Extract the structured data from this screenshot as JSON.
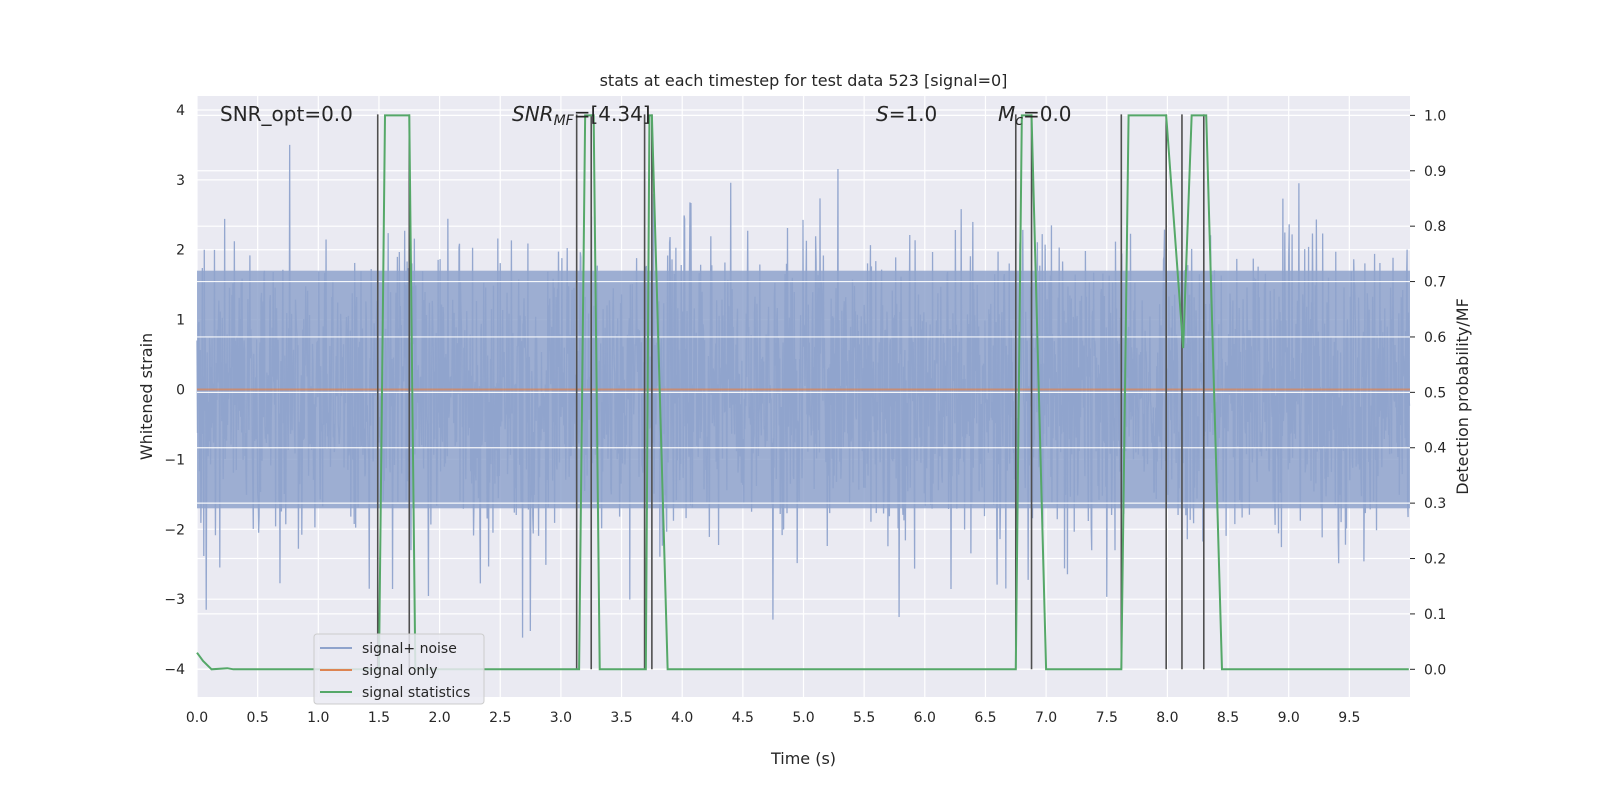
{
  "chart_data": {
    "type": "line",
    "title": "stats at each timestep for test data 523 [signal=0]",
    "xlabel": "Time (s)",
    "ylabel_left": "Whitened strain",
    "ylabel_right": "Detection probability/MF",
    "xlim": [
      0.0,
      10.0
    ],
    "ylim_left": [
      -4.4,
      4.2
    ],
    "ylim_right": [
      -0.05,
      1.035
    ],
    "x_ticks": [
      "0.0",
      "0.5",
      "1.0",
      "1.5",
      "2.0",
      "2.5",
      "3.0",
      "3.5",
      "4.0",
      "4.5",
      "5.0",
      "5.5",
      "6.0",
      "6.5",
      "7.0",
      "7.5",
      "8.0",
      "8.5",
      "9.0",
      "9.5"
    ],
    "y_ticks_left": [
      "−4",
      "−3",
      "−2",
      "−1",
      "0",
      "1",
      "2",
      "3",
      "4"
    ],
    "y_ticks_right": [
      "0.0",
      "0.1",
      "0.2",
      "0.3",
      "0.4",
      "0.5",
      "0.6",
      "0.7",
      "0.8",
      "0.9",
      "1.0"
    ],
    "grid": true,
    "legend_position": "lower-left",
    "annotations": {
      "snr_opt": "SNR_opt=0.0",
      "snr_mf_main": "SNR",
      "snr_mf_sub": "MF",
      "snr_mf_value": "=[4.34]",
      "s_main": "S",
      "s_value": "=1.0",
      "mc_main": "M",
      "mc_sub": "c",
      "mc_value": "=0.0"
    },
    "series": [
      {
        "name": "signal+ noise",
        "color": "#8fa3cc",
        "axis": "left",
        "sample_rate": 250,
        "seed": 523,
        "core_amplitude": 1.7
      },
      {
        "name": "signal only",
        "color": "#dd8452",
        "axis": "left",
        "constant": 0.0
      },
      {
        "name": "signal statistics",
        "color": "#55a868",
        "axis": "right",
        "x": [
          0.0,
          0.05,
          0.12,
          0.25,
          0.3,
          1.5,
          1.55,
          1.75,
          1.8,
          3.15,
          3.2,
          3.27,
          3.32,
          3.7,
          3.73,
          3.75,
          3.88,
          6.75,
          6.8,
          6.88,
          7.0,
          7.62,
          7.68,
          7.99,
          8.13,
          8.2,
          8.32,
          8.45,
          9.99
        ],
        "values": [
          0.03,
          0.015,
          0.0,
          0.002,
          0.0,
          0.0,
          1.0,
          1.0,
          0.0,
          0.0,
          1.0,
          1.0,
          0.0,
          0.0,
          1.0,
          1.0,
          0.0,
          0.0,
          1.0,
          1.0,
          0.0,
          0.0,
          1.0,
          1.0,
          0.58,
          1.0,
          1.0,
          0.0,
          0.0
        ]
      }
    ],
    "detection_markers": {
      "color": "#4f4f4f",
      "x": [
        1.49,
        1.75,
        3.13,
        3.25,
        3.69,
        3.75,
        6.75,
        6.88,
        7.62,
        7.99,
        8.12,
        8.3
      ]
    }
  }
}
